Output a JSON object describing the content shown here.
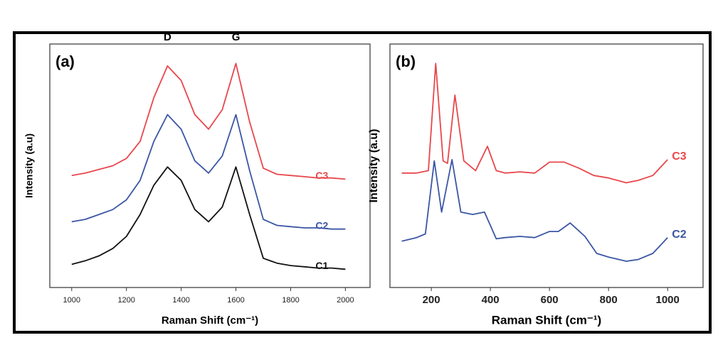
{
  "chart_data": [
    {
      "type": "line",
      "label": "(a)",
      "xlabel": "Raman Shift (cm⁻¹)",
      "ylabel": "Intensity (a.u)",
      "annotations": [
        {
          "text": "D",
          "x": 1350
        },
        {
          "text": "G",
          "x": 1600
        }
      ],
      "xlim": [
        920,
        2090
      ],
      "xticks": [
        1000,
        1200,
        1400,
        1600,
        1800,
        2000
      ],
      "ylim": [
        0,
        100
      ],
      "x": [
        1000,
        1050,
        1100,
        1150,
        1200,
        1250,
        1300,
        1350,
        1400,
        1450,
        1500,
        1550,
        1600,
        1650,
        1700,
        1750,
        1800,
        1850,
        1900,
        1950,
        2000
      ],
      "series": [
        {
          "name": "C3",
          "color": "#e8474c",
          "values": [
            46,
            47,
            48.5,
            50,
            53,
            60,
            78,
            91,
            85,
            71,
            65,
            73,
            92,
            68,
            49,
            46.5,
            46,
            45.5,
            45,
            45,
            44.5
          ]
        },
        {
          "name": "C2",
          "color": "#3b56a5",
          "values": [
            27,
            28,
            30,
            32,
            36,
            44,
            60,
            71,
            65,
            52,
            47,
            54,
            71,
            48,
            28,
            25.5,
            25,
            24.5,
            24.5,
            24,
            24
          ]
        },
        {
          "name": "C1",
          "color": "#111111",
          "values": [
            9.5,
            11,
            13,
            16,
            21,
            30,
            42,
            49.5,
            44,
            32,
            27,
            33,
            49.5,
            30,
            12,
            10,
            9,
            8.5,
            8,
            8,
            7.5
          ]
        }
      ]
    },
    {
      "type": "line",
      "label": "(b)",
      "xlabel": "Raman Shift (cm⁻¹)",
      "ylabel": "Intensity (a.u)",
      "xlim": [
        60,
        1120
      ],
      "xticks": [
        200,
        400,
        600,
        800,
        1000
      ],
      "ylim": [
        0,
        100
      ],
      "series": [
        {
          "name": "C3",
          "color": "#e8474c",
          "x": [
            100,
            150,
            190,
            215,
            240,
            255,
            280,
            310,
            350,
            390,
            420,
            450,
            500,
            550,
            600,
            650,
            700,
            750,
            800,
            860,
            900,
            950,
            1000
          ],
          "values": [
            47,
            47,
            48,
            92,
            52,
            51,
            79,
            52,
            48,
            58,
            48,
            47,
            47.5,
            47,
            51.5,
            51.5,
            49,
            46,
            45,
            43,
            44,
            46,
            52.5
          ]
        },
        {
          "name": "C2",
          "color": "#3b56a5",
          "x": [
            100,
            150,
            180,
            210,
            235,
            270,
            300,
            340,
            380,
            420,
            450,
            500,
            550,
            600,
            630,
            670,
            720,
            760,
            800,
            860,
            900,
            950,
            1000
          ],
          "values": [
            19,
            20.5,
            22,
            52,
            31,
            52.5,
            31,
            30,
            31,
            20,
            20.5,
            21,
            20.5,
            23,
            23,
            26.5,
            21,
            14,
            12.5,
            10.8,
            11.5,
            14,
            20.5
          ]
        }
      ]
    }
  ]
}
